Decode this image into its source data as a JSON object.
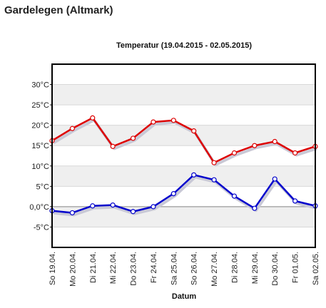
{
  "page": {
    "title": "Gardelegen (Altmark)"
  },
  "chart_data": {
    "type": "line",
    "title": "Temperatur (19.04.2015 - 02.05.2015)",
    "xlabel": "Datum",
    "ylabel": "",
    "categories": [
      "So 19.04.",
      "Mo 20.04.",
      "Di 21.04.",
      "Mi 22.04.",
      "Do 23.04.",
      "Fr 24.04.",
      "Sa 25.04.",
      "So 26.04.",
      "Mo 27.04.",
      "Di 28.04.",
      "Mi 29.04.",
      "Do 30.04.",
      "Fr 01.05.",
      "Sa 02.05."
    ],
    "series": [
      {
        "values": [
          16.2,
          19.2,
          21.8,
          14.8,
          16.8,
          20.8,
          21.2,
          18.6,
          10.8,
          13.2,
          15.0,
          16.0,
          13.2,
          14.8
        ],
        "color": "#dd0000"
      },
      {
        "values": [
          -1.0,
          -1.5,
          0.2,
          0.4,
          -1.2,
          0.0,
          3.2,
          7.8,
          6.6,
          2.6,
          -0.4,
          6.8,
          1.4,
          0.2
        ],
        "color": "#0000cc"
      }
    ],
    "ylim": [
      -10,
      35
    ],
    "yticks": [
      30,
      25,
      20,
      15,
      10,
      5,
      0,
      -5
    ],
    "ytick_labels": [
      "30°C",
      "25°C",
      "20°C",
      "15°C",
      "10°C",
      "5°C",
      "0,0°C",
      "-5°C"
    ],
    "grid": true,
    "alternating_bands": true
  }
}
